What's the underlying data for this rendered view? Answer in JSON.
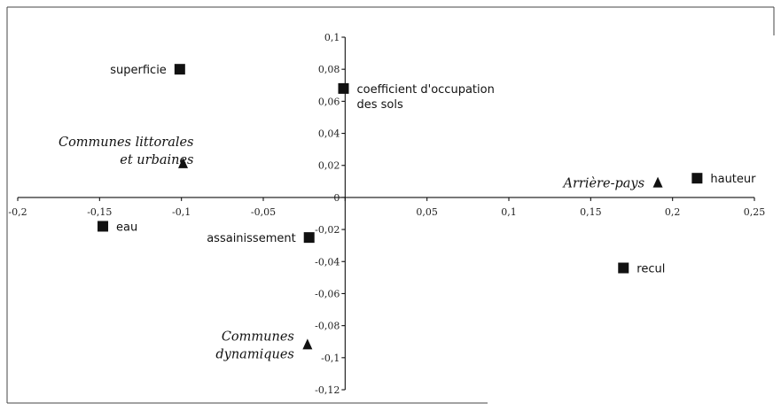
{
  "chart_data": {
    "type": "scatter",
    "title": "",
    "xlabel": "",
    "ylabel": "",
    "xlim": [
      -0.2,
      0.25
    ],
    "ylim": [
      -0.12,
      0.1
    ],
    "x_ticks": [
      {
        "value": -0.2,
        "label": "-0,2"
      },
      {
        "value": -0.15,
        "label": "-0,15"
      },
      {
        "value": -0.1,
        "label": "-0,1"
      },
      {
        "value": -0.05,
        "label": "-0,05"
      },
      {
        "value": 0,
        "label": "0"
      },
      {
        "value": 0.05,
        "label": "0,05"
      },
      {
        "value": 0.1,
        "label": "0,1"
      },
      {
        "value": 0.15,
        "label": "0,15"
      },
      {
        "value": 0.2,
        "label": "0,2"
      },
      {
        "value": 0.25,
        "label": "0,25"
      }
    ],
    "y_ticks": [
      {
        "value": 0.1,
        "label": "0,1"
      },
      {
        "value": 0.08,
        "label": "0,08"
      },
      {
        "value": 0.06,
        "label": "0,06"
      },
      {
        "value": 0.04,
        "label": "0,04"
      },
      {
        "value": 0.02,
        "label": "0,02"
      },
      {
        "value": 0,
        "label": "0"
      },
      {
        "value": -0.02,
        "label": "-0,02"
      },
      {
        "value": -0.04,
        "label": "-0,04"
      },
      {
        "value": -0.06,
        "label": "-0,06"
      },
      {
        "value": -0.08,
        "label": "-0,08"
      },
      {
        "value": -0.1,
        "label": "-0,1"
      },
      {
        "value": -0.12,
        "label": "-0,12"
      }
    ],
    "series": [
      {
        "marker": "square",
        "points": [
          {
            "label": "superficie",
            "x": -0.101,
            "y": 0.08,
            "label_side": "left"
          },
          {
            "label": "coefficient d'occupation\ndes sols",
            "x": -0.001,
            "y": 0.068,
            "label_side": "right"
          },
          {
            "label": "hauteur",
            "x": 0.215,
            "y": 0.012,
            "label_side": "right"
          },
          {
            "label": "eau",
            "x": -0.148,
            "y": -0.018,
            "label_side": "right"
          },
          {
            "label": "assainissement",
            "x": -0.022,
            "y": -0.025,
            "label_side": "left"
          },
          {
            "label": "recul",
            "x": 0.17,
            "y": -0.044,
            "label_side": "right"
          }
        ]
      },
      {
        "marker": "triangle",
        "points": [
          {
            "label": "Communes littorales\net urbaines",
            "x": -0.099,
            "y": 0.021,
            "label_side": "above-left"
          },
          {
            "label": "Arrière-pays",
            "x": 0.191,
            "y": 0.009,
            "label_side": "left"
          },
          {
            "label": "Communes\ndynamiques",
            "x": -0.023,
            "y": -0.092,
            "label_side": "left"
          }
        ]
      }
    ],
    "grid": false,
    "legend": "none"
  }
}
